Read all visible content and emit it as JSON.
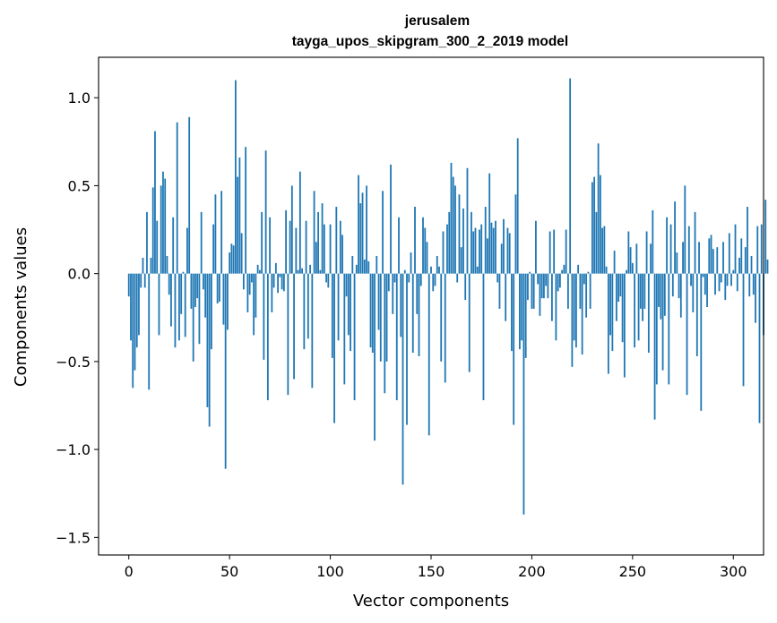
{
  "chart_data": {
    "type": "bar",
    "title": "jerusalem",
    "subtitle": "tayga_upos_skipgram_300_2_2019 model",
    "xlabel": "Vector components",
    "ylabel": "Components values",
    "xlim": [
      -15,
      315
    ],
    "ylim": [
      -1.6,
      1.23
    ],
    "xticks": [
      0,
      50,
      100,
      150,
      200,
      250,
      300
    ],
    "yticks": [
      -1.5,
      -1.0,
      -0.5,
      0.0,
      0.5,
      1.0
    ],
    "ytick_labels": [
      "−1.5",
      "−1.0",
      "−0.5",
      "0.0",
      "0.5",
      "1.0"
    ],
    "grid": false,
    "bar_color": "#1f77b4",
    "values": [
      -0.13,
      -0.38,
      -0.65,
      -0.55,
      -0.42,
      -0.35,
      -0.08,
      0.09,
      -0.08,
      0.35,
      -0.66,
      0.09,
      0.49,
      0.81,
      0.3,
      -0.35,
      0.5,
      0.58,
      0.54,
      0.1,
      -0.12,
      -0.3,
      0.32,
      -0.42,
      0.86,
      -0.38,
      -0.23,
      0.01,
      -0.36,
      0.26,
      0.89,
      -0.2,
      -0.5,
      -0.19,
      -0.14,
      -0.4,
      0.35,
      -0.09,
      -0.25,
      -0.76,
      -0.87,
      -0.43,
      0.28,
      0.45,
      -0.17,
      -0.16,
      0.47,
      -0.29,
      -1.11,
      -0.32,
      0.12,
      0.17,
      0.16,
      1.1,
      0.55,
      0.66,
      0.23,
      -0.09,
      0.72,
      -0.22,
      -0.12,
      -0.05,
      -0.35,
      -0.25,
      0.05,
      0.02,
      0.35,
      -0.49,
      0.7,
      -0.72,
      0.32,
      -0.22,
      -0.08,
      0.06,
      -0.11,
      -0.02,
      -0.09,
      -0.1,
      0.36,
      -0.69,
      0.3,
      0.5,
      -0.6,
      0.26,
      0.02,
      0.58,
      0.03,
      -0.43,
      0.3,
      -0.37,
      0.05,
      -0.65,
      0.47,
      0.18,
      0.35,
      0.02,
      0.4,
      0.28,
      -0.05,
      -0.08,
      0.28,
      -0.48,
      -0.85,
      0.38,
      -0.38,
      0.3,
      0.22,
      -0.63,
      -0.13,
      -0.35,
      -0.44,
      0.1,
      -0.72,
      0.05,
      0.56,
      0.4,
      0.46,
      0.08,
      0.5,
      0.07,
      -0.42,
      -0.45,
      -0.95,
      0.1,
      -0.32,
      -0.5,
      0.47,
      -0.68,
      -0.5,
      -0.1,
      0.62,
      -0.23,
      -0.05,
      -0.72,
      0.32,
      -0.36,
      -1.2,
      0.02,
      -0.86,
      -0.05,
      0.12,
      -0.45,
      0.38,
      -0.23,
      -0.47,
      -0.07,
      0.32,
      0.26,
      0.18,
      -0.92,
      0.04,
      -0.1,
      -0.07,
      0.1,
      0.04,
      -0.5,
      0.24,
      -0.62,
      0.28,
      0.35,
      0.63,
      0.55,
      0.5,
      -0.05,
      0.45,
      0.15,
      0.37,
      -0.15,
      0.6,
      -0.56,
      0.35,
      0.24,
      0.26,
      0.04,
      0.25,
      0.28,
      -0.72,
      0.38,
      0.2,
      0.57,
      0.29,
      0.26,
      0.3,
      -0.05,
      -0.2,
      0.17,
      0.31,
      -0.27,
      0.26,
      0.23,
      -0.44,
      -0.86,
      0.45,
      0.77,
      -0.43,
      -0.38,
      -1.37,
      -0.48,
      -0.15,
      0.01,
      -0.2,
      -0.2,
      0.3,
      -0.06,
      -0.24,
      -0.14,
      -0.14,
      -0.07,
      -0.14,
      0.24,
      -0.27,
      0.25,
      -0.38,
      -0.1,
      -0.08,
      0.02,
      0.05,
      0.25,
      -0.2,
      1.11,
      -0.53,
      -0.38,
      -0.42,
      0.05,
      -0.2,
      -0.46,
      -0.06,
      -0.25,
      0.01,
      -0.2,
      0.52,
      0.55,
      0.35,
      0.74,
      0.56,
      0.26,
      0.27,
      0.04,
      -0.57,
      -0.35,
      -0.44,
      0.13,
      -0.27,
      -0.16,
      -0.13,
      -0.39,
      -0.59,
      0.02,
      0.24,
      0.15,
      0.06,
      -0.42,
      0.17,
      -0.38,
      -0.2,
      -0.27,
      -0.2,
      0.24,
      -0.45,
      0.17,
      0.36,
      -0.83,
      -0.63,
      -0.19,
      -0.26,
      -0.55,
      -0.24,
      0.32,
      -0.63,
      0.28,
      -0.13,
      0.41,
      0.12,
      -0.14,
      -0.25,
      0.18,
      0.5,
      -0.69,
      0.27,
      -0.07,
      -0.22,
      0.35,
      -0.47,
      0.18,
      -0.78,
      -0.02,
      -0.12,
      -0.19,
      0.2,
      0.22,
      0.14,
      -0.12,
      0.15,
      -0.1,
      -0.05,
      0.18,
      -0.15,
      -0.07,
      0.23,
      -0.07,
      0.02,
      0.28,
      -0.1,
      0.09,
      0.2,
      -0.64,
      0.15,
      0.38,
      -0.13,
      0.1,
      -0.12,
      -0.28,
      0.27,
      -0.85,
      0.28,
      -0.35,
      0.42,
      0.08
    ]
  }
}
